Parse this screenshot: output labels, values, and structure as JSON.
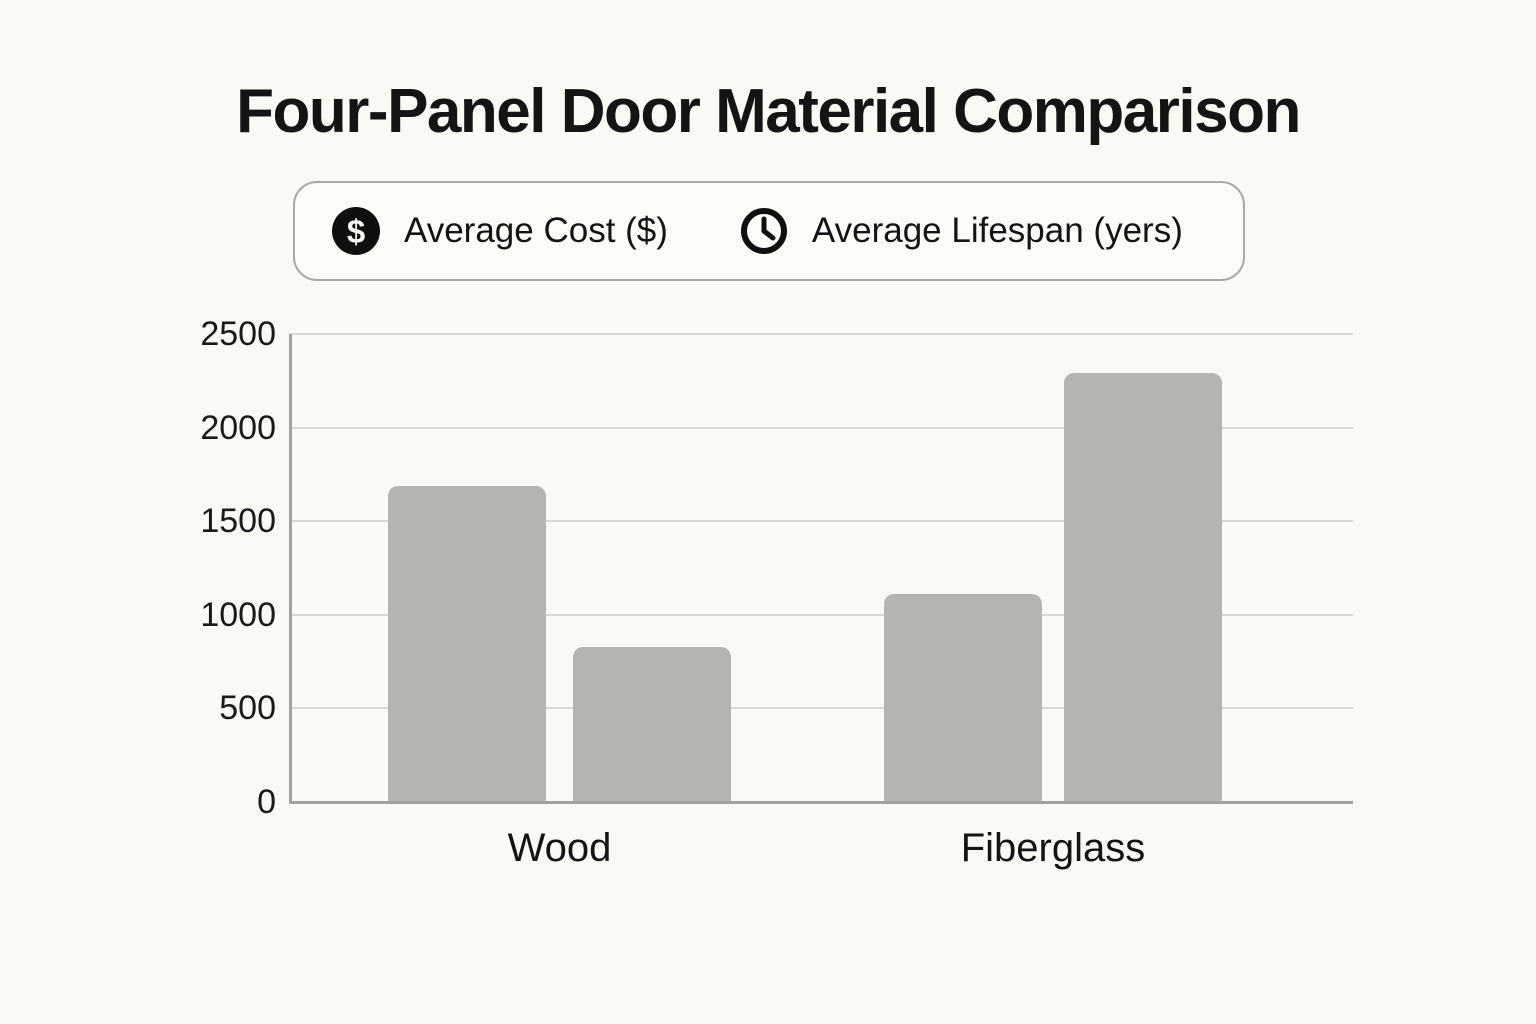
{
  "page": {
    "title": "Four-Panel Door Material Comparison",
    "background_color": "#fbf9f4",
    "text_color": "#141414"
  },
  "legend": {
    "items": [
      {
        "icon": "dollar-icon",
        "label": "Average Cost ($)"
      },
      {
        "icon": "clock-icon",
        "label": "Average Lifespan (yers)"
      }
    ],
    "dollar_glyph": "$"
  },
  "chart_data": {
    "type": "bar",
    "title": "Four-Panel Door Material Comparison",
    "categories": [
      "Wood",
      "Fiberglass"
    ],
    "series": [
      {
        "name": "Average Cost ($)",
        "values": [
          1690,
          1110
        ]
      },
      {
        "name": "Average Lifespan (yers)",
        "values": [
          830,
          2290
        ]
      }
    ],
    "xlabel": "",
    "ylabel": "",
    "ylim": [
      0,
      2500
    ],
    "yticks": [
      0,
      500,
      1000,
      1500,
      2000,
      2500
    ],
    "grid": true,
    "legend_position": "top",
    "bar_color": "#b6b4b1",
    "gridline_color": "#d9d7d1",
    "axis_color": "#a3a19b"
  }
}
